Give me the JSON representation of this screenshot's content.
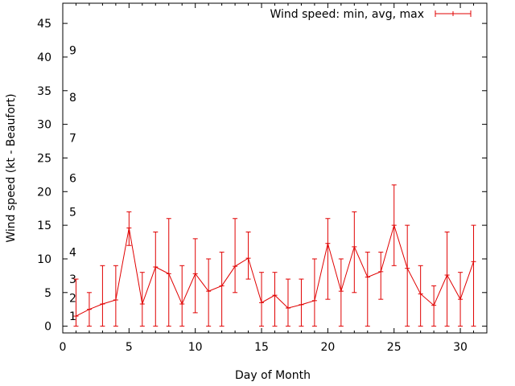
{
  "chart_data": {
    "type": "line",
    "title": "",
    "xlabel": "Day of Month",
    "ylabel": "Wind speed (kt - Beaufort)",
    "xlim": [
      0,
      32
    ],
    "ylim": [
      -1,
      48
    ],
    "x_ticks": [
      0,
      5,
      10,
      15,
      20,
      25,
      30
    ],
    "y_ticks": [
      0,
      5,
      10,
      15,
      20,
      25,
      30,
      35,
      40,
      45
    ],
    "legend": {
      "label": "Wind speed: min, avg, max",
      "placement": "top-right"
    },
    "series_color": "#e00000",
    "series": [
      {
        "name": "Wind speed: min, avg, max",
        "x": [
          1,
          2,
          3,
          4,
          5,
          6,
          7,
          8,
          9,
          10,
          11,
          12,
          13,
          14,
          15,
          16,
          17,
          18,
          19,
          20,
          21,
          22,
          23,
          24,
          25,
          26,
          27,
          28,
          29,
          30,
          31
        ],
        "avg": [
          1.5,
          2.5,
          3.3,
          3.9,
          14.6,
          3.3,
          8.8,
          7.8,
          3.3,
          7.8,
          5.2,
          6.0,
          8.9,
          10.1,
          3.5,
          4.6,
          2.7,
          3.2,
          3.8,
          12.3,
          5.2,
          11.8,
          7.3,
          8.1,
          15.0,
          8.6,
          4.8,
          3.1,
          7.6,
          4.0,
          9.6
        ],
        "min": [
          0,
          0,
          0,
          0,
          12,
          0,
          0,
          0,
          0,
          2,
          0,
          0,
          5,
          7,
          0,
          0,
          0,
          0,
          0,
          4,
          0,
          5,
          0,
          4,
          9,
          0,
          0,
          0,
          0,
          0,
          0
        ],
        "max": [
          7,
          5,
          9,
          9,
          17,
          8,
          14,
          16,
          9,
          13,
          10,
          11,
          16,
          14,
          8,
          8,
          7,
          7,
          10,
          16,
          10,
          17,
          11,
          11,
          21,
          15,
          9,
          6,
          14,
          8,
          15
        ]
      }
    ],
    "annotations": [
      {
        "label": "1",
        "value": 1.5
      },
      {
        "label": "2",
        "value": 4.2
      },
      {
        "label": "3",
        "value": 7.0
      },
      {
        "label": "4",
        "value": 11.0
      },
      {
        "label": "5",
        "value": 17.0
      },
      {
        "label": "6",
        "value": 22.0
      },
      {
        "label": "7",
        "value": 28.0
      },
      {
        "label": "8",
        "value": 34.0
      },
      {
        "label": "9",
        "value": 41.0
      }
    ]
  }
}
